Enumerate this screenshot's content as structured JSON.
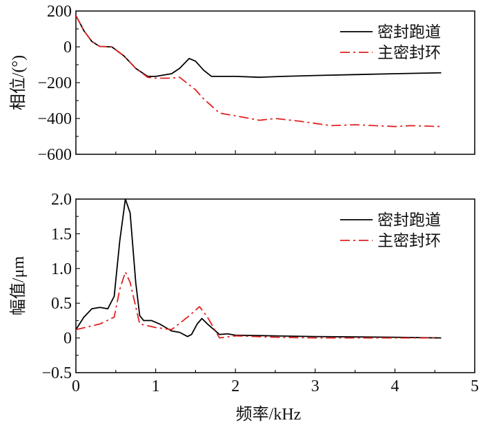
{
  "chart_data": [
    {
      "type": "line",
      "title": "",
      "xlabel": "",
      "ylabel": "相位/(°)",
      "xlim": [
        0,
        5
      ],
      "ylim": [
        -600,
        200
      ],
      "yticks": [
        200,
        0,
        -200,
        -400,
        -600
      ],
      "legend": "top-right",
      "series": [
        {
          "name": "密封跑道",
          "style": "solid",
          "color": "#000000",
          "x": [
            0,
            0.1,
            0.2,
            0.3,
            0.45,
            0.6,
            0.75,
            0.9,
            1.0,
            1.2,
            1.3,
            1.42,
            1.5,
            1.6,
            1.7,
            2.0,
            2.3,
            2.6,
            3.0,
            3.5,
            4.0,
            4.58
          ],
          "y": [
            175,
            90,
            30,
            2,
            0,
            -50,
            -120,
            -165,
            -165,
            -150,
            -120,
            -65,
            -80,
            -130,
            -165,
            -165,
            -170,
            -165,
            -160,
            -155,
            -150,
            -145
          ]
        },
        {
          "name": "主密封环",
          "style": "dashdot",
          "color": "#e02020",
          "x": [
            0,
            0.1,
            0.2,
            0.3,
            0.45,
            0.6,
            0.75,
            0.9,
            1.0,
            1.2,
            1.3,
            1.5,
            1.6,
            1.8,
            2.0,
            2.3,
            2.5,
            2.8,
            3.2,
            3.5,
            4.0,
            4.2,
            4.58
          ],
          "y": [
            175,
            90,
            30,
            2,
            0,
            -50,
            -120,
            -170,
            -175,
            -175,
            -170,
            -240,
            -290,
            -370,
            -385,
            -410,
            -400,
            -415,
            -440,
            -435,
            -445,
            -440,
            -445
          ]
        }
      ]
    },
    {
      "type": "line",
      "title": "",
      "xlabel": "频率/kHz",
      "ylabel": "幅值/μm",
      "xlim": [
        0,
        5
      ],
      "ylim": [
        -0.5,
        2.0
      ],
      "xticks": [
        0,
        1,
        2,
        3,
        4,
        5
      ],
      "yticks": [
        2.0,
        1.5,
        1.0,
        0.5,
        0,
        -0.5
      ],
      "ytick_labels": [
        "2.0",
        "1.5",
        "1.0",
        "0.5",
        "0",
        "−0.5"
      ],
      "legend": "top-right",
      "series": [
        {
          "name": "密封跑道",
          "style": "solid",
          "color": "#000000",
          "x": [
            0,
            0.1,
            0.2,
            0.3,
            0.4,
            0.48,
            0.55,
            0.62,
            0.68,
            0.75,
            0.8,
            0.85,
            0.95,
            1.05,
            1.2,
            1.3,
            1.4,
            1.45,
            1.52,
            1.58,
            1.65,
            1.8,
            1.9,
            2.0,
            2.5,
            3.0,
            4.0,
            4.58
          ],
          "y": [
            0.12,
            0.3,
            0.42,
            0.44,
            0.42,
            0.6,
            1.4,
            2.0,
            1.8,
            0.8,
            0.32,
            0.25,
            0.25,
            0.2,
            0.1,
            0.08,
            0.02,
            0.05,
            0.2,
            0.28,
            0.2,
            0.05,
            0.06,
            0.04,
            0.03,
            0.02,
            0.01,
            0.0
          ]
        },
        {
          "name": "主密封环",
          "style": "dashdot",
          "color": "#e02020",
          "x": [
            0,
            0.3,
            0.48,
            0.55,
            0.62,
            0.68,
            0.8,
            1.0,
            1.2,
            1.4,
            1.55,
            1.65,
            1.8,
            2.0,
            2.5,
            3.0,
            4.5
          ],
          "y": [
            0.12,
            0.2,
            0.3,
            0.7,
            0.95,
            0.8,
            0.2,
            0.15,
            0.12,
            0.3,
            0.45,
            0.3,
            0.0,
            0.03,
            0.01,
            0.0,
            0.0
          ]
        }
      ]
    }
  ]
}
